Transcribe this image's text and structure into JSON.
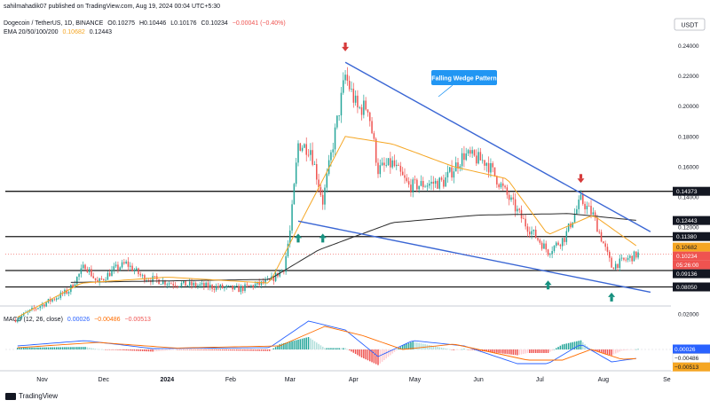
{
  "published": "sahilmahadik07 published on TradingView.com, Aug 19, 2024 00:04 UTC+5:30",
  "symbol_line": {
    "title": "Dogecoin / TetherUS, 1D, BINANCE",
    "o": "O0.10275",
    "h": "H0.10446",
    "l": "L0.10176",
    "c": "C0.10234",
    "chg": "−0.00041 (−0.40%)"
  },
  "ema_line": {
    "label": "EMA 20/50/100/200",
    "v1": "0.10682",
    "v2": "0.12443"
  },
  "macd_line": {
    "label": "MACD (12, 26, close)",
    "v1": "0.00026",
    "v2": "−0.00486",
    "v3": "−0.00513"
  },
  "currency": "USDT",
  "footer": "TradingView",
  "annotation": "Falling Wedge Pattern",
  "colors": {
    "up": "#26a69a",
    "down": "#ef5350",
    "wedge": "#3a66d4",
    "ema_fast": "#f5a623",
    "ema_slow": "#2b2b2b",
    "label_bg": "#2196f3",
    "macd": "#2962ff",
    "signal": "#ff6d00"
  },
  "chart_data": [
    {
      "type": "candlestick",
      "ylim": [
        0.072,
        0.245
      ],
      "y_ticks": [
        "0.24000",
        "0.22000",
        "0.20000",
        "0.18000",
        "0.16000",
        "0.14000",
        "0.12000",
        "0.10000",
        "0.08000"
      ],
      "x_ticks": [
        "Nov",
        "Dec",
        "2024",
        "Feb",
        "Mar",
        "Apr",
        "May",
        "Jun",
        "Jul",
        "Aug",
        "Se"
      ],
      "horizontal_levels": [
        0.14373,
        0.1138,
        0.09136,
        0.0805
      ],
      "price_labels": [
        {
          "text": "0.14373",
          "value": 0.14373,
          "style": "dark"
        },
        {
          "text": "0.12443",
          "value": 0.12443,
          "style": "dark"
        },
        {
          "text": "0.11380",
          "value": 0.1138,
          "style": "dark"
        },
        {
          "text": "0.10682",
          "value": 0.10682,
          "style": "orange"
        },
        {
          "text": "0.10234",
          "value": 0.10234,
          "style": "red"
        },
        {
          "text": "05:26:00",
          "value": 0.0993,
          "style": "red"
        },
        {
          "text": "0.09136",
          "value": 0.09136,
          "style": "dark"
        },
        {
          "text": "0.08050",
          "value": 0.0805,
          "style": "dark"
        }
      ],
      "wedge_upper": [
        [
          "2024-03-28",
          0.229
        ],
        [
          "2024-08-24",
          0.117
        ]
      ],
      "wedge_lower": [
        [
          "2024-03-05",
          0.124
        ],
        [
          "2024-08-24",
          0.077
        ]
      ],
      "markers": [
        {
          "date": "2024-03-28",
          "value": 0.238,
          "dir": "down"
        },
        {
          "date": "2024-07-21",
          "value": 0.151,
          "dir": "down"
        },
        {
          "date": "2024-03-05",
          "value": 0.114,
          "dir": "up"
        },
        {
          "date": "2024-03-17",
          "value": 0.114,
          "dir": "up"
        },
        {
          "date": "2024-07-05",
          "value": 0.083,
          "dir": "up"
        },
        {
          "date": "2024-08-05",
          "value": 0.075,
          "dir": "up"
        }
      ],
      "close_anchors": [
        [
          "2023-10-18",
          0.0585
        ],
        [
          "2023-10-31",
          0.068
        ],
        [
          "2023-11-14",
          0.078
        ],
        [
          "2023-11-22",
          0.095
        ],
        [
          "2023-11-28",
          0.083
        ],
        [
          "2023-12-06",
          0.092
        ],
        [
          "2023-12-12",
          0.096
        ],
        [
          "2023-12-20",
          0.087
        ],
        [
          "2024-01-03",
          0.083
        ],
        [
          "2024-01-20",
          0.081
        ],
        [
          "2024-02-05",
          0.079
        ],
        [
          "2024-02-20",
          0.084
        ],
        [
          "2024-02-27",
          0.093
        ],
        [
          "2024-03-01",
          0.117
        ],
        [
          "2024-03-05",
          0.175
        ],
        [
          "2024-03-11",
          0.172
        ],
        [
          "2024-03-17",
          0.137
        ],
        [
          "2024-03-22",
          0.175
        ],
        [
          "2024-03-28",
          0.22
        ],
        [
          "2024-04-03",
          0.198
        ],
        [
          "2024-04-08",
          0.2
        ],
        [
          "2024-04-13",
          0.158
        ],
        [
          "2024-04-20",
          0.162
        ],
        [
          "2024-04-28",
          0.147
        ],
        [
          "2024-05-15",
          0.15
        ],
        [
          "2024-05-25",
          0.168
        ],
        [
          "2024-06-05",
          0.163
        ],
        [
          "2024-06-15",
          0.141
        ],
        [
          "2024-06-24",
          0.122
        ],
        [
          "2024-07-05",
          0.104
        ],
        [
          "2024-07-13",
          0.113
        ],
        [
          "2024-07-21",
          0.138
        ],
        [
          "2024-07-27",
          0.128
        ],
        [
          "2024-08-05",
          0.094
        ],
        [
          "2024-08-18",
          0.1023
        ]
      ],
      "ema_fast_anchors": [
        [
          "2023-10-20",
          0.0605
        ],
        [
          "2023-11-20",
          0.083
        ],
        [
          "2024-01-01",
          0.087
        ],
        [
          "2024-02-20",
          0.083
        ],
        [
          "2024-03-05",
          0.12
        ],
        [
          "2024-03-28",
          0.18
        ],
        [
          "2024-04-20",
          0.175
        ],
        [
          "2024-05-20",
          0.16
        ],
        [
          "2024-06-15",
          0.152
        ],
        [
          "2024-07-05",
          0.115
        ],
        [
          "2024-07-27",
          0.128
        ],
        [
          "2024-08-18",
          0.1068
        ]
      ],
      "ema_slow_anchors": [
        [
          "2023-11-15",
          0.0835
        ],
        [
          "2024-01-01",
          0.0845
        ],
        [
          "2024-02-20",
          0.0855
        ],
        [
          "2024-03-15",
          0.105
        ],
        [
          "2024-04-20",
          0.123
        ],
        [
          "2024-06-01",
          0.128
        ],
        [
          "2024-07-15",
          0.129
        ],
        [
          "2024-08-18",
          0.1244
        ]
      ]
    },
    {
      "type": "macd",
      "ylim": [
        -0.009,
        0.021
      ],
      "y_ticks": [
        "0.02000"
      ],
      "value_labels": [
        {
          "text": "0.00026",
          "value": 0.00026,
          "style": "blue"
        },
        {
          "text": "−0.00486",
          "value": -0.00486,
          "style": "white"
        },
        {
          "text": "−0.00513",
          "value": -0.00513,
          "style": "orange"
        }
      ],
      "macd_anchors": [
        [
          "2023-10-20",
          0.002
        ],
        [
          "2023-11-22",
          0.005
        ],
        [
          "2023-12-25",
          0.0005
        ],
        [
          "2024-02-20",
          0.001
        ],
        [
          "2024-03-10",
          0.016
        ],
        [
          "2024-03-28",
          0.011
        ],
        [
          "2024-04-13",
          -0.004
        ],
        [
          "2024-04-30",
          0.005
        ],
        [
          "2024-05-25",
          0.002
        ],
        [
          "2024-06-20",
          -0.008
        ],
        [
          "2024-07-05",
          -0.008
        ],
        [
          "2024-07-21",
          0.003
        ],
        [
          "2024-08-05",
          -0.007
        ],
        [
          "2024-08-18",
          -0.0049
        ]
      ],
      "signal_anchors": [
        [
          "2023-10-20",
          0.001
        ],
        [
          "2023-11-28",
          0.004
        ],
        [
          "2024-01-05",
          0.0008
        ],
        [
          "2024-02-25",
          0.002
        ],
        [
          "2024-03-18",
          0.013
        ],
        [
          "2024-04-05",
          0.008
        ],
        [
          "2024-04-25",
          0.0
        ],
        [
          "2024-05-20",
          0.003
        ],
        [
          "2024-06-25",
          -0.006
        ],
        [
          "2024-07-12",
          -0.006
        ],
        [
          "2024-07-26",
          0.0
        ],
        [
          "2024-08-10",
          -0.0055
        ],
        [
          "2024-08-18",
          -0.0051
        ]
      ]
    }
  ]
}
